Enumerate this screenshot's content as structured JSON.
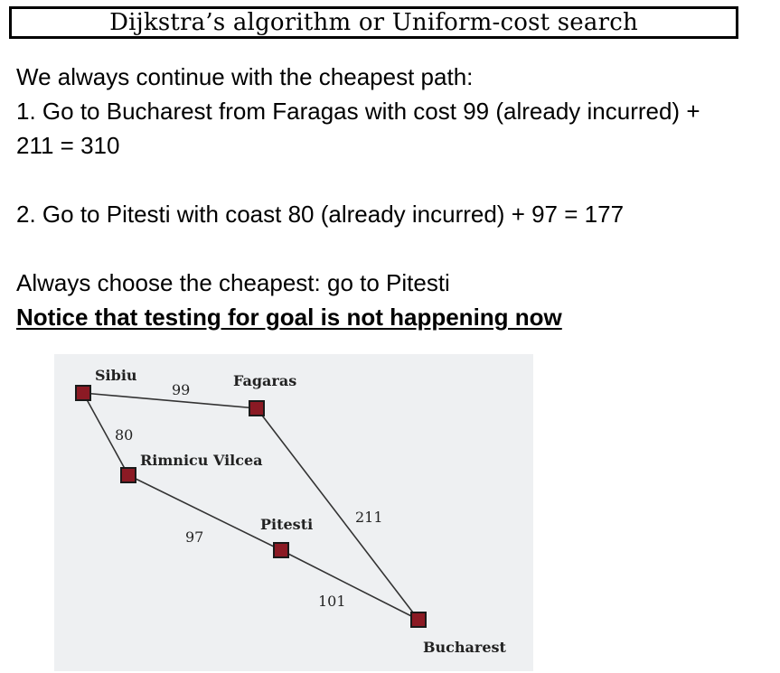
{
  "slide": {
    "title": "Dijkstra’s algorithm or Uniform-cost search",
    "lines": [
      "We always continue with the cheapest path:",
      "1. Go to Bucharest from Faragas with cost 99 (already incurred) +",
      "211 = 310",
      "2. Go to Pitesti with coast 80 (already incurred) + 97 = 177",
      "Always choose the cheapest: go to Pitesti",
      "Notice that testing for goal is not happening now"
    ]
  },
  "map": {
    "node_color": "#8b1a24",
    "node_border": "#1a1a1a",
    "edge_color": "#333333",
    "cities": {
      "sibiu": "Sibiu",
      "fagaras": "Fagaras",
      "rimnicu": "Rimnicu Vilcea",
      "pitesti": "Pitesti",
      "bucharest": "Bucharest"
    },
    "edges": {
      "sibiu_fagaras": "99",
      "sibiu_rimnicu": "80",
      "rimnicu_pitesti": "97",
      "fagaras_bucharest": "211",
      "pitesti_bucharest": "101"
    }
  }
}
